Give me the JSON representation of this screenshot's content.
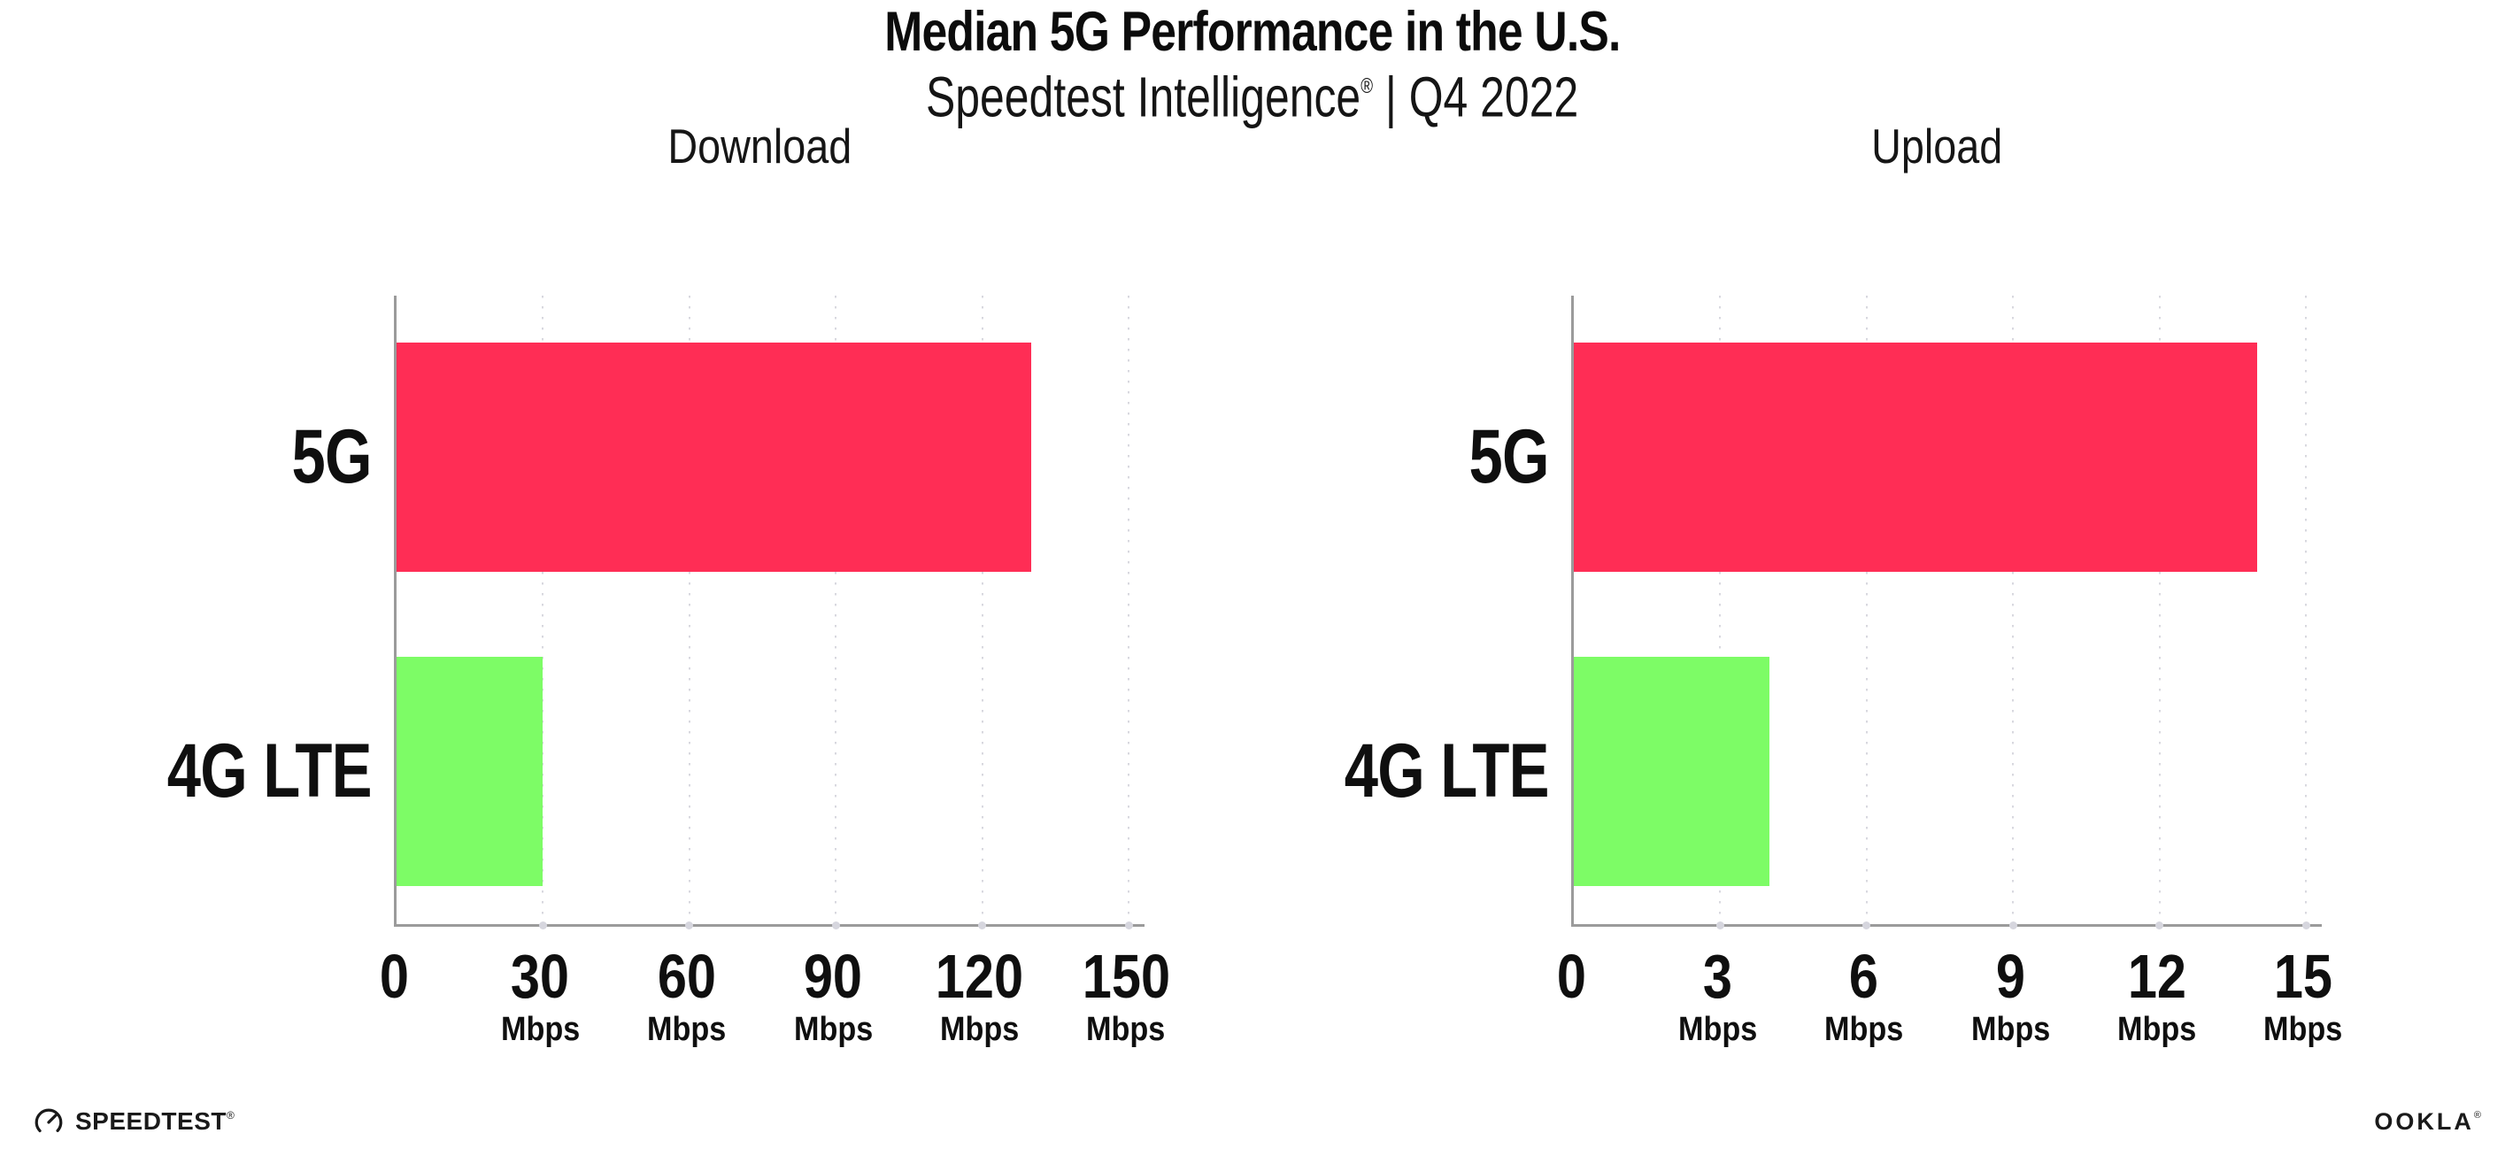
{
  "header": {
    "title": "Median 5G Performance in the U.S.",
    "subtitle": {
      "brand": "Speedtest Intelligence",
      "reg_mark": "®",
      "rest": " | Q4 2022"
    }
  },
  "chart_data": [
    {
      "type": "bar",
      "orientation": "horizontal",
      "title": "Download",
      "categories": [
        "5G",
        "4G LTE"
      ],
      "values": [
        130,
        30
      ],
      "unit": "Mbps",
      "xlim": [
        0,
        150
      ],
      "xticks": [
        0,
        30,
        60,
        90,
        120,
        150
      ],
      "tick_unit_label": "Mbps",
      "bar_colors": [
        "#FF2D55",
        "#7DFC66"
      ],
      "grid": "vertical-dotted",
      "legend": "none"
    },
    {
      "type": "bar",
      "orientation": "horizontal",
      "title": "Upload",
      "categories": [
        "5G",
        "4G LTE"
      ],
      "values": [
        14,
        4
      ],
      "unit": "Mbps",
      "xlim": [
        0,
        15
      ],
      "xticks": [
        0,
        3,
        6,
        9,
        12,
        15
      ],
      "tick_unit_label": "Mbps",
      "bar_colors": [
        "#FF2D55",
        "#7DFC66"
      ],
      "grid": "vertical-dotted",
      "legend": "none"
    }
  ],
  "footer": {
    "speedtest_wordmark": "SPEEDTEST",
    "speedtest_reg_mark": "®",
    "ookla_wordmark": "OOKLA",
    "ookla_reg_mark": "®"
  },
  "colors": {
    "bar_5g": "#FF2D55",
    "bar_4g_lte": "#7DFC66",
    "axis_line": "#9B9B9B",
    "gridline": "#D8D8DF",
    "text": "#0F0F0F",
    "background": "#FFFFFF"
  }
}
